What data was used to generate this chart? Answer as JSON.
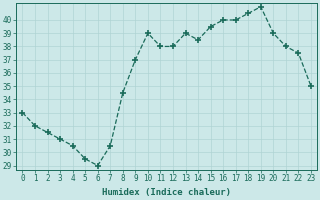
{
  "x": [
    0,
    1,
    2,
    3,
    4,
    5,
    6,
    7,
    8,
    9,
    10,
    11,
    12,
    13,
    14,
    15,
    16,
    17,
    18,
    19,
    20,
    21,
    22,
    23
  ],
  "y": [
    33,
    32,
    31.5,
    31,
    30.5,
    29.5,
    29,
    30.5,
    34.5,
    37,
    39,
    38,
    38,
    39,
    38.5,
    39.5,
    40,
    40,
    40.5,
    41,
    39,
    38,
    37.5,
    35
  ],
  "line_color": "#1a6b5a",
  "marker": "+",
  "marker_size": 4,
  "bg_color": "#cce8e8",
  "grid_color": "#b0d4d4",
  "xlabel": "Humidex (Indice chaleur)",
  "ylim": [
    29,
    41
  ],
  "xlim": [
    -0.5,
    23.5
  ],
  "yticks": [
    29,
    30,
    31,
    32,
    33,
    34,
    35,
    36,
    37,
    38,
    39,
    40
  ],
  "xticks": [
    0,
    1,
    2,
    3,
    4,
    5,
    6,
    7,
    8,
    9,
    10,
    11,
    12,
    13,
    14,
    15,
    16,
    17,
    18,
    19,
    20,
    21,
    22,
    23
  ],
  "label_fontsize": 6.5,
  "tick_fontsize": 5.5
}
